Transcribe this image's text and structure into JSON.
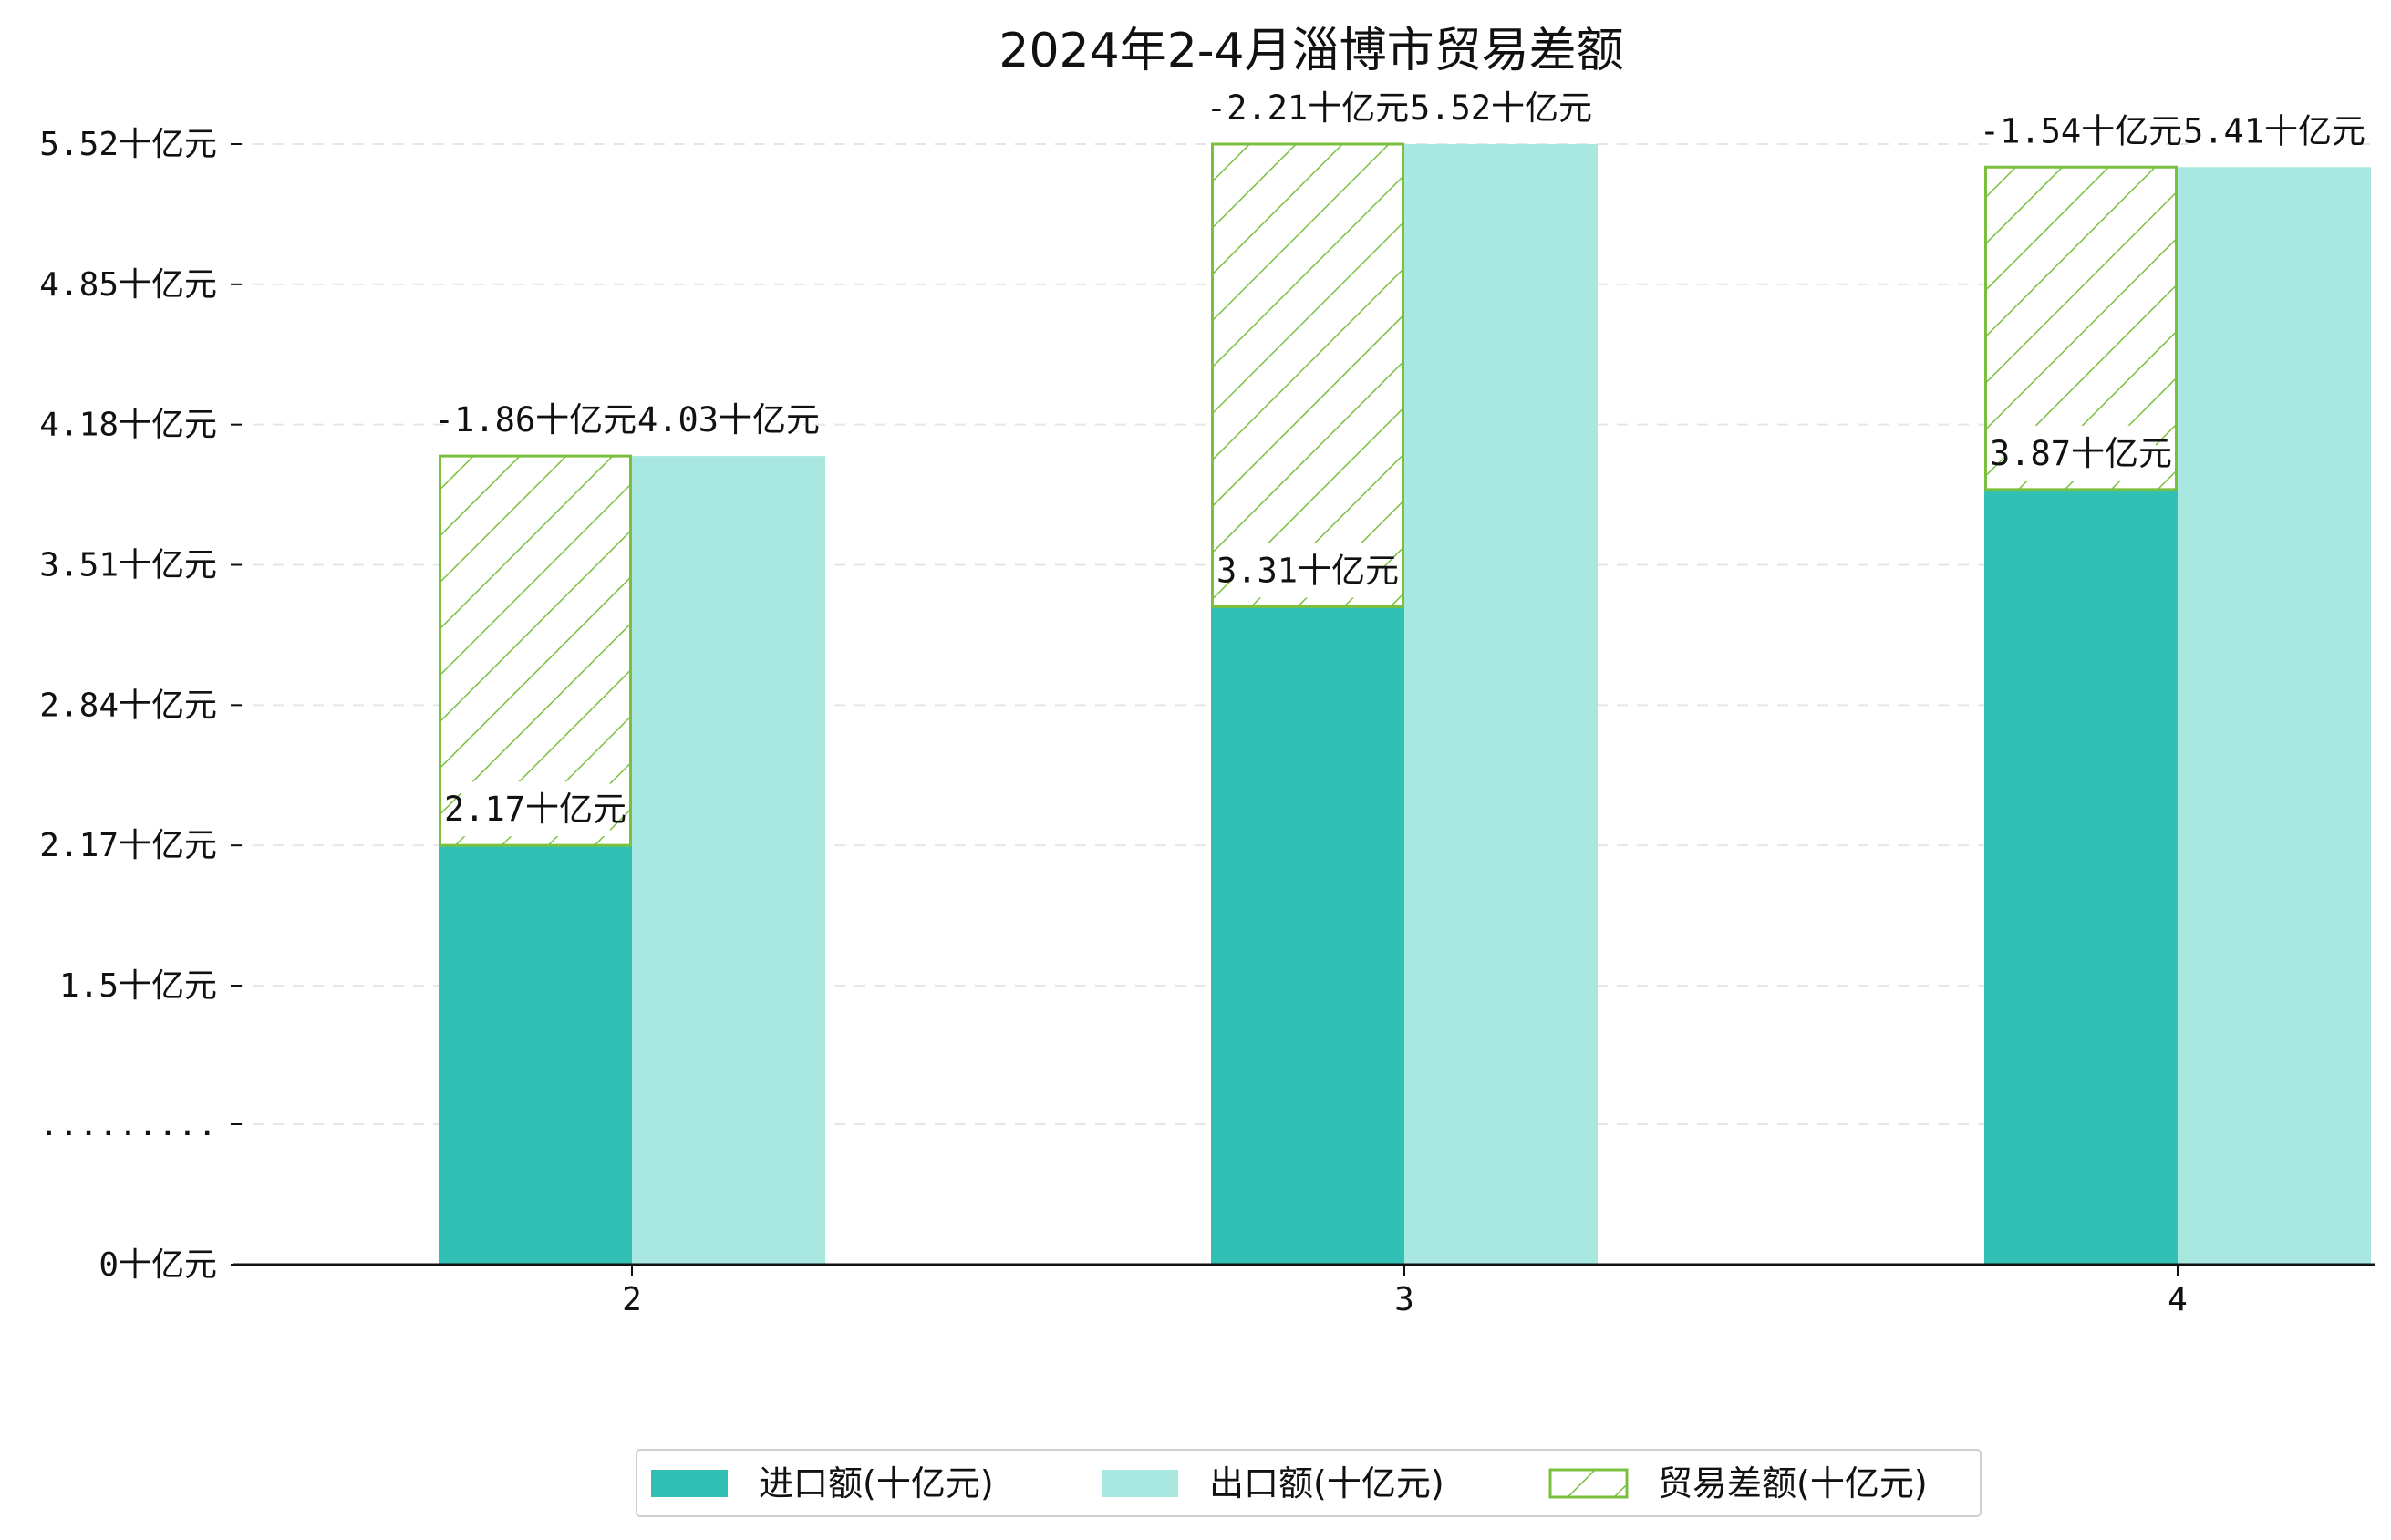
{
  "colors": {
    "import": "#31c1b4",
    "export": "#a9e7e1",
    "balance": "#7bbf3f",
    "axis": "#111111",
    "grid": "#e6e6e6"
  },
  "chart_data": {
    "type": "bar",
    "title": "2024年2-4月淄博市贸易差额",
    "xlabel": "",
    "ylabel": "",
    "categories": [
      "2",
      "3",
      "4"
    ],
    "series": [
      {
        "name": "进口额(十亿元)",
        "values": [
          2.17,
          3.31,
          3.87
        ],
        "labels": [
          "2.17十亿元",
          "3.31十亿元",
          "3.87十亿元"
        ]
      },
      {
        "name": "出口额(十亿元)",
        "values": [
          4.03,
          5.52,
          5.41
        ],
        "labels": [
          "4.03十亿元",
          "5.52十亿元",
          "5.41十亿元"
        ]
      },
      {
        "name": "贸易差额(十亿元)",
        "values": [
          -1.86,
          -2.21,
          -1.54
        ],
        "labels": [
          "-1.86十亿元",
          "-2.21十亿元",
          "-1.54十亿元"
        ]
      }
    ],
    "y_ticks": [
      "0十亿元",
      ".........",
      "1.5十亿元",
      "2.17十亿元",
      "2.84十亿元",
      "3.51十亿元",
      "4.18十亿元",
      "4.85十亿元",
      "5.52十亿元"
    ],
    "y_axis_note": "broken axis: lower segment compressed below 1.5",
    "grid": "horizontal dashed",
    "legend_position": "bottom-center"
  }
}
